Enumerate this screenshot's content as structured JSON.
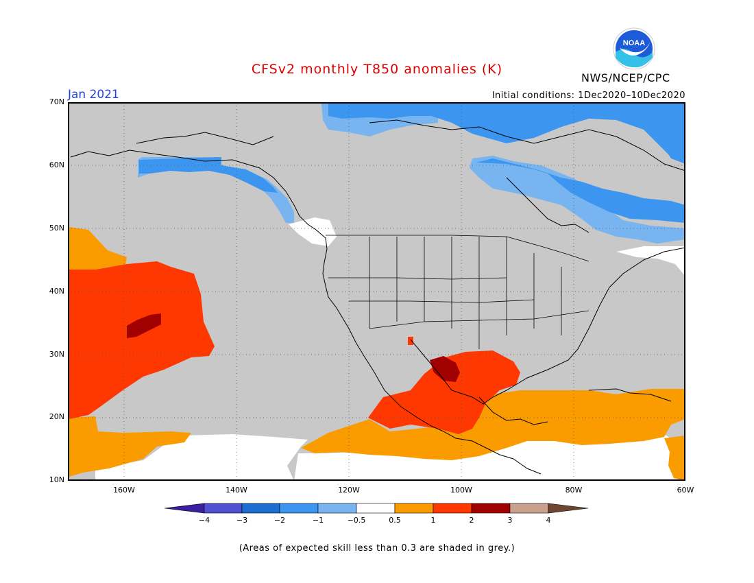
{
  "header": {
    "title": "CFSv2 monthly T850 anomalies (K)",
    "month": "Jan 2021",
    "org": "NWS/NCEP/CPC",
    "initial_conditions": "Initial conditions: 1Dec2020–10Dec2020",
    "logo_text": "NOAA"
  },
  "map": {
    "lat_labels": [
      "70N",
      "60N",
      "50N",
      "40N",
      "30N",
      "20N",
      "10N"
    ],
    "lon_labels": [
      "160W",
      "140W",
      "120W",
      "100W",
      "80W",
      "60W"
    ],
    "colors": {
      "grey": "#c8c8c8",
      "white": "#ffffff",
      "light_blue": "#78b4f0",
      "mid_blue": "#3c96f0",
      "orange": "#fa9b00",
      "red": "#ff3700",
      "dark_red": "#a00000"
    }
  },
  "colorbar": {
    "labels": [
      "−4",
      "−3",
      "−2",
      "−1",
      "−0.5",
      "0.5",
      "1",
      "2",
      "3",
      "4"
    ],
    "colors": [
      "#3c1ea0",
      "#5050d0",
      "#1e6ed2",
      "#3c96f0",
      "#78b4f0",
      "#ffffff",
      "#fa9b00",
      "#ff3700",
      "#a00000",
      "#c8a08c",
      "#6e4632"
    ]
  },
  "footer": {
    "note": "(Areas of expected skill less than 0.3 are shaded in grey.)"
  }
}
